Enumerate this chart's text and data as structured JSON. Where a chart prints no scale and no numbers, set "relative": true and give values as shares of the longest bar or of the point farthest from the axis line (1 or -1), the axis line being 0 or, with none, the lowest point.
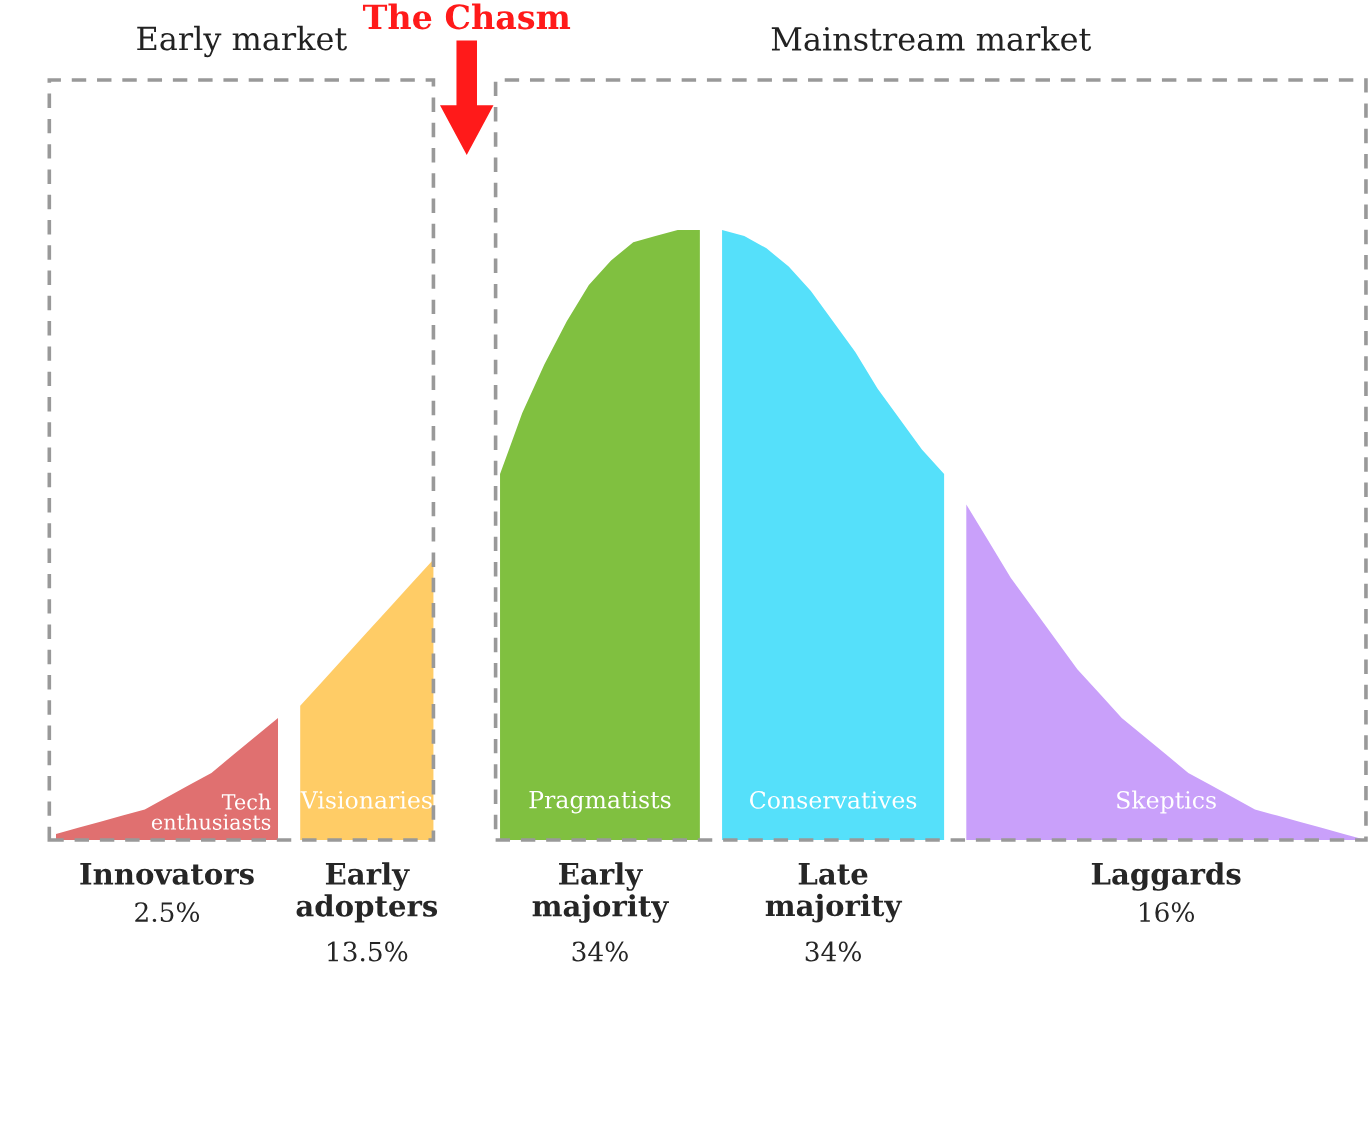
{
  "chart_data": {
    "type": "area",
    "relative": true,
    "categories": [
      null,
      null,
      null,
      null,
      null,
      null,
      null,
      null,
      null,
      null,
      null,
      null,
      null,
      null,
      null,
      null,
      null,
      null,
      null,
      null,
      null,
      null,
      null,
      null,
      null,
      null,
      null,
      null,
      null,
      null,
      null,
      null,
      null,
      null,
      null,
      null,
      null,
      null,
      null,
      null,
      null,
      null,
      null,
      null,
      null,
      null,
      null,
      null,
      null,
      null,
      null,
      null,
      null,
      null,
      null,
      null,
      null,
      null,
      null,
      null
    ],
    "series": [
      {
        "name": "Tech\nenthusiasts",
        "color": "#e07070",
        "values": [
          0.01,
          0.02,
          0.03,
          0.04,
          0.05,
          0.07,
          0.09,
          0.11,
          0.14,
          0.17,
          0.2,
          null,
          null,
          null,
          null,
          null,
          null,
          null,
          null,
          null,
          null,
          null,
          null,
          null,
          null,
          null,
          null,
          null,
          null,
          null,
          null,
          null,
          null,
          null,
          null,
          null,
          null,
          null,
          null,
          null,
          null,
          null,
          null,
          null,
          null,
          null,
          null,
          null,
          null,
          null,
          null,
          null,
          null,
          null,
          null,
          null,
          null,
          null,
          null,
          null
        ]
      },
      {
        "name": "Visionaries",
        "color": "#ffcc66",
        "values": [
          null,
          null,
          null,
          null,
          null,
          null,
          null,
          null,
          null,
          null,
          null,
          0.22,
          0.26,
          0.3,
          0.34,
          0.38,
          0.42,
          0.46,
          null,
          null,
          null,
          null,
          null,
          null,
          null,
          null,
          null,
          null,
          null,
          null,
          null,
          null,
          null,
          null,
          null,
          null,
          null,
          null,
          null,
          null,
          null,
          null,
          null,
          null,
          null,
          null,
          null,
          null,
          null,
          null,
          null,
          null,
          null,
          null,
          null,
          null,
          null,
          null,
          null,
          null
        ]
      },
      {
        "name": "Pragmatists",
        "color": "#80c040",
        "values": [
          null,
          null,
          null,
          null,
          null,
          null,
          null,
          null,
          null,
          null,
          null,
          null,
          null,
          null,
          null,
          null,
          null,
          null,
          null,
          null,
          0.6,
          0.7,
          0.78,
          0.85,
          0.91,
          0.95,
          0.98,
          0.99,
          1.0,
          1.0,
          null,
          null,
          null,
          null,
          null,
          null,
          null,
          null,
          null,
          null,
          null,
          null,
          null,
          null,
          null,
          null,
          null,
          null,
          null,
          null,
          null,
          null,
          null,
          null,
          null,
          null,
          null,
          null,
          null,
          null
        ]
      },
      {
        "name": "Conservatives",
        "color": "#55e0fa",
        "values": [
          null,
          null,
          null,
          null,
          null,
          null,
          null,
          null,
          null,
          null,
          null,
          null,
          null,
          null,
          null,
          null,
          null,
          null,
          null,
          null,
          null,
          null,
          null,
          null,
          null,
          null,
          null,
          null,
          null,
          null,
          1.0,
          0.99,
          0.97,
          0.94,
          0.9,
          0.85,
          0.8,
          0.74,
          0.69,
          0.64,
          0.6,
          null,
          null,
          null,
          null,
          null,
          null,
          null,
          null,
          null,
          null,
          null,
          null,
          null,
          null,
          null,
          null,
          null,
          null,
          null
        ]
      },
      {
        "name": "Skeptics",
        "color": "#c9a0fa",
        "values": [
          null,
          null,
          null,
          null,
          null,
          null,
          null,
          null,
          null,
          null,
          null,
          null,
          null,
          null,
          null,
          null,
          null,
          null,
          null,
          null,
          null,
          null,
          null,
          null,
          null,
          null,
          null,
          null,
          null,
          null,
          null,
          null,
          null,
          null,
          null,
          null,
          null,
          null,
          null,
          null,
          null,
          0.55,
          0.49,
          0.43,
          0.38,
          0.33,
          0.28,
          0.24,
          0.2,
          0.17,
          0.14,
          0.11,
          0.09,
          0.07,
          0.05,
          0.04,
          0.03,
          0.02,
          0.01,
          0.0
        ]
      }
    ],
    "annotations": [
      "Innovators\n2.5%",
      "Early\nadopters\n13.5%",
      "Early\nmajority\n34%",
      "Late\nmajority\n34%",
      "Laggards\n16%",
      "Early market",
      "The Chasm",
      "Mainstream market"
    ]
  }
}
